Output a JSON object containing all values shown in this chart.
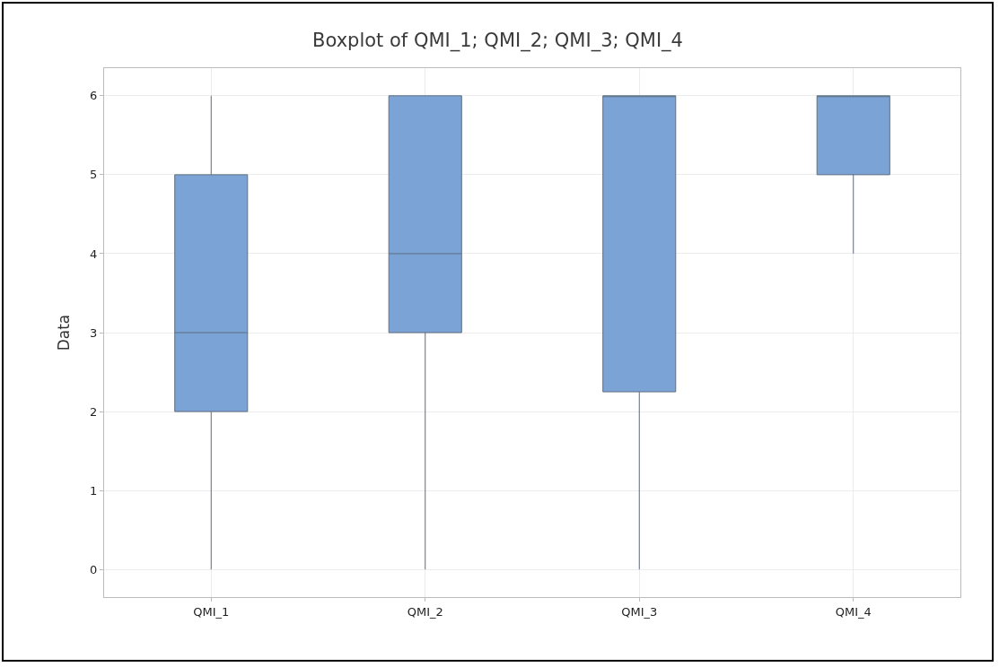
{
  "chart_data": {
    "type": "box",
    "title": "Boxplot of QMI_1; QMI_2; QMI_3; QMI_4",
    "ylabel": "Data",
    "categories": [
      "QMI_1",
      "QMI_2",
      "QMI_3",
      "QMI_4"
    ],
    "boxes": [
      {
        "low": 0,
        "q1": 2,
        "median": 3,
        "q3": 5,
        "high": 6
      },
      {
        "low": 0,
        "q1": 3,
        "median": 4,
        "q3": 6,
        "high": 6
      },
      {
        "low": 0,
        "q1": 2.25,
        "median": 6,
        "q3": 6,
        "high": 6
      },
      {
        "low": 4,
        "q1": 5,
        "median": 6,
        "q3": 6,
        "high": 6
      }
    ],
    "color": "#7ba3d6",
    "ylim": [
      -0.35,
      6.35
    ],
    "yticks": [
      0,
      1,
      2,
      3,
      4,
      5,
      6
    ],
    "grid": true
  }
}
